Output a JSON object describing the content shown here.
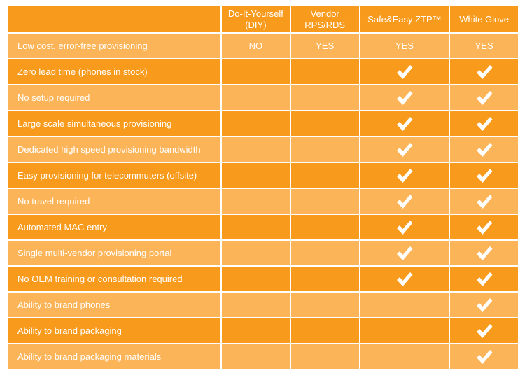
{
  "header": {
    "corner": "",
    "columns": [
      {
        "line1": "Do-It-Yourself",
        "line2": "(DIY)"
      },
      {
        "line1": "Vendor",
        "line2": "RPS/RDS"
      },
      {
        "line1": "Safe&Easy ZTP™",
        "line2": ""
      },
      {
        "line1": "White Glove",
        "line2": ""
      }
    ]
  },
  "colors": {
    "dark": "#f89a1c",
    "light": "#fbb458",
    "text": "#ffffff"
  },
  "icons": {
    "check": "check-icon"
  },
  "rows": [
    {
      "label": "Low cost, error-free provisioning",
      "cells": [
        "NO",
        "YES",
        "YES",
        "YES"
      ]
    },
    {
      "label": "Zero lead time (phones in stock)",
      "cells": [
        "",
        "",
        "check",
        "check"
      ]
    },
    {
      "label": "No setup required",
      "cells": [
        "",
        "",
        "check",
        "check"
      ]
    },
    {
      "label": "Large scale simultaneous provisioning",
      "cells": [
        "",
        "",
        "check",
        "check"
      ]
    },
    {
      "label": "Dedicated high speed provisioning bandwidth",
      "cells": [
        "",
        "",
        "check",
        "check"
      ]
    },
    {
      "label": "Easy provisioning for telecommuters (offsite)",
      "cells": [
        "",
        "",
        "check",
        "check"
      ]
    },
    {
      "label": "No travel required",
      "cells": [
        "",
        "",
        "check",
        "check"
      ]
    },
    {
      "label": "Automated MAC entry",
      "cells": [
        "",
        "",
        "check",
        "check"
      ]
    },
    {
      "label": "Single multi-vendor provisioning portal",
      "cells": [
        "",
        "",
        "check",
        "check"
      ]
    },
    {
      "label": "No OEM training or consultation required",
      "cells": [
        "",
        "",
        "check",
        "check"
      ]
    },
    {
      "label": "Ability to brand phones",
      "cells": [
        "",
        "",
        "",
        "check"
      ]
    },
    {
      "label": "Ability to brand packaging",
      "cells": [
        "",
        "",
        "",
        "check"
      ]
    },
    {
      "label": "Ability to brand packaging materials",
      "cells": [
        "",
        "",
        "",
        "check"
      ]
    }
  ]
}
